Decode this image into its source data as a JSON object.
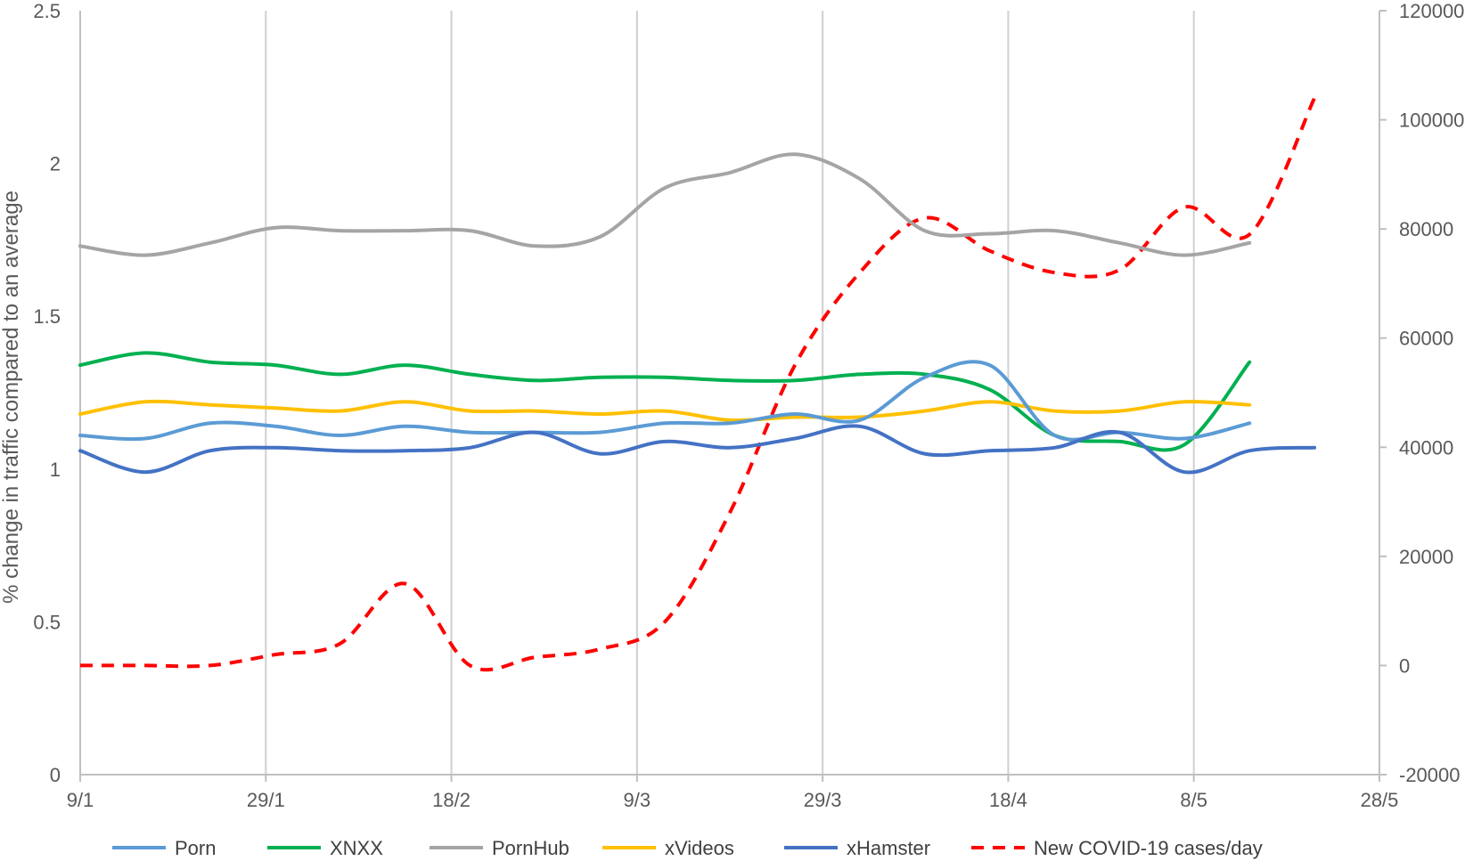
{
  "chart_data": {
    "type": "line",
    "title": "",
    "ylabel": "% change in traffic compared to an average",
    "y2label": "",
    "xlabel": "",
    "x_ticks": [
      "9/1",
      "29/1",
      "18/2",
      "9/3",
      "29/3",
      "18/4",
      "8/5",
      "28/5"
    ],
    "x_tick_days": [
      0,
      20,
      40,
      60,
      80,
      100,
      120,
      140
    ],
    "xlim": [
      0,
      140
    ],
    "ylim": [
      0,
      2.5
    ],
    "y_ticks": [
      "0",
      "0.5",
      "1",
      "1.5",
      "2",
      "2.5"
    ],
    "y2lim": [
      -20000,
      120000
    ],
    "y2_ticks": [
      "-20000",
      "0",
      "20000",
      "40000",
      "60000",
      "80000",
      "100000",
      "120000"
    ],
    "grid": "vertical",
    "legend_position": "bottom",
    "series": [
      {
        "name": "Porn",
        "color": "#5b9bd5",
        "axis": "left",
        "dash": false,
        "x": [
          0,
          7,
          14,
          21,
          28,
          35,
          42,
          49,
          56,
          63,
          70,
          77,
          84,
          91,
          98,
          105,
          112,
          119,
          126
        ],
        "values": [
          1.11,
          1.1,
          1.15,
          1.14,
          1.11,
          1.14,
          1.12,
          1.12,
          1.12,
          1.15,
          1.15,
          1.18,
          1.16,
          1.3,
          1.34,
          1.11,
          1.12,
          1.1,
          1.15
        ]
      },
      {
        "name": "XNXX",
        "color": "#00b050",
        "axis": "left",
        "dash": false,
        "x": [
          0,
          7,
          14,
          21,
          28,
          35,
          42,
          49,
          56,
          63,
          70,
          77,
          84,
          91,
          98,
          105,
          112,
          119,
          126
        ],
        "values": [
          1.34,
          1.38,
          1.35,
          1.34,
          1.31,
          1.34,
          1.31,
          1.29,
          1.3,
          1.3,
          1.29,
          1.29,
          1.31,
          1.31,
          1.26,
          1.11,
          1.09,
          1.08,
          1.35
        ]
      },
      {
        "name": "PornHub",
        "color": "#a5a5a5",
        "axis": "left",
        "dash": false,
        "x": [
          0,
          7,
          14,
          21,
          28,
          35,
          42,
          49,
          56,
          63,
          70,
          77,
          84,
          91,
          98,
          105,
          112,
          119,
          126
        ],
        "values": [
          1.73,
          1.7,
          1.74,
          1.79,
          1.78,
          1.78,
          1.78,
          1.73,
          1.76,
          1.92,
          1.97,
          2.03,
          1.95,
          1.78,
          1.77,
          1.78,
          1.74,
          1.7,
          1.74
        ]
      },
      {
        "name": "xVideos",
        "color": "#ffc000",
        "axis": "left",
        "dash": false,
        "x": [
          0,
          7,
          14,
          21,
          28,
          35,
          42,
          49,
          56,
          63,
          70,
          77,
          84,
          91,
          98,
          105,
          112,
          119,
          126
        ],
        "values": [
          1.18,
          1.22,
          1.21,
          1.2,
          1.19,
          1.22,
          1.19,
          1.19,
          1.18,
          1.19,
          1.16,
          1.17,
          1.17,
          1.19,
          1.22,
          1.19,
          1.19,
          1.22,
          1.21
        ]
      },
      {
        "name": "xHamster",
        "color": "#4472c4",
        "axis": "left",
        "dash": false,
        "x": [
          0,
          7,
          14,
          21,
          28,
          35,
          42,
          49,
          56,
          63,
          70,
          77,
          84,
          91,
          98,
          105,
          112,
          119,
          126,
          133
        ],
        "values": [
          1.06,
          0.99,
          1.06,
          1.07,
          1.06,
          1.06,
          1.07,
          1.12,
          1.05,
          1.09,
          1.07,
          1.1,
          1.14,
          1.05,
          1.06,
          1.07,
          1.12,
          0.99,
          1.06,
          1.07
        ]
      },
      {
        "name": "New COVID-19 cases/day",
        "color": "#ff0000",
        "axis": "right",
        "dash": true,
        "x": [
          0,
          7,
          14,
          21,
          28,
          35,
          42,
          49,
          56,
          63,
          70,
          77,
          84,
          91,
          98,
          105,
          112,
          119,
          126,
          133
        ],
        "values": [
          0,
          0,
          0,
          2000,
          4000,
          15000,
          0,
          1500,
          3000,
          8000,
          28000,
          55000,
          72000,
          82000,
          76000,
          72000,
          72500,
          84000,
          79000,
          104000
        ]
      }
    ]
  }
}
